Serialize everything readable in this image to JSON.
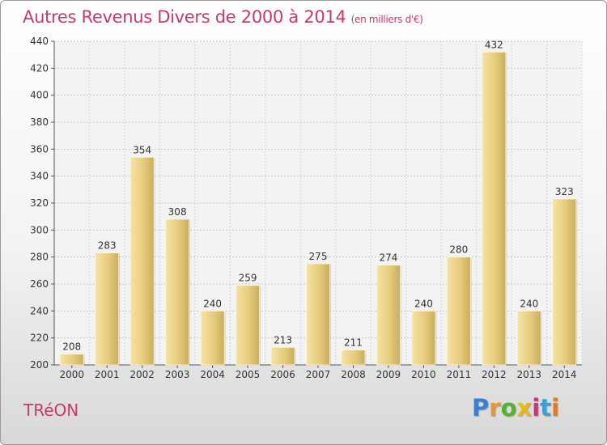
{
  "title": "Autres Revenus Divers de 2000 à 2014",
  "title_unit": "(en milliers d'€)",
  "town": "TRéON",
  "logo": {
    "letters": [
      "P",
      "r",
      "o",
      "x",
      "i",
      "t",
      "i"
    ],
    "colors": [
      "#3a7fd0",
      "#e9962b",
      "#58b030",
      "#e8b71c",
      "#c33a7a",
      "#3aa0d8",
      "#e07a20"
    ]
  },
  "chart_data": {
    "type": "bar",
    "title": "Autres Revenus Divers de 2000 à 2014",
    "categories": [
      "2000",
      "2001",
      "2002",
      "2003",
      "2004",
      "2005",
      "2006",
      "2007",
      "2008",
      "2009",
      "2010",
      "2011",
      "2012",
      "2013",
      "2014"
    ],
    "values": [
      208,
      283,
      354,
      308,
      240,
      259,
      213,
      275,
      211,
      274,
      240,
      280,
      432,
      240,
      323
    ],
    "ylim": [
      200,
      440
    ],
    "yticks": [
      200,
      220,
      240,
      260,
      280,
      300,
      320,
      340,
      360,
      380,
      400,
      420,
      440
    ],
    "grid": true,
    "bar_color": "#e8cf82"
  }
}
